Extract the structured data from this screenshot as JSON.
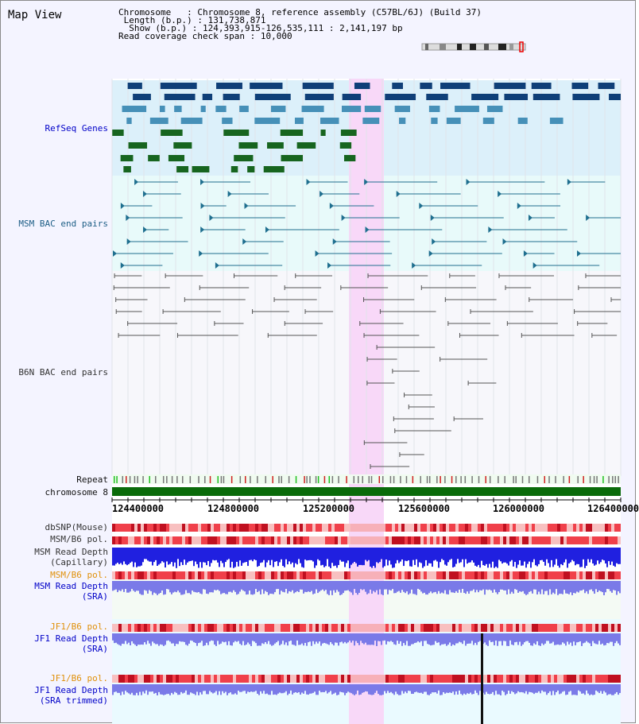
{
  "view": {
    "title": "Map View",
    "header": {
      "chromosome_key": "Chromosome",
      "chromosome_value": "Chromosome 8, reference assembly (C57BL/6J) (Build 37)",
      "length_key": "Length (b.p.)",
      "length_value": "131,738,871",
      "show_key": "Show (b.p.)",
      "show_value": "124,393,915-126,535,111 : 2,141,197 bp",
      "span_key": "Read coverage check span",
      "span_value": "10,000"
    }
  },
  "tracks": {
    "refseq": "RefSeq Genes",
    "msm_bac": "MSM BAC end pairs",
    "b6n_bac": "B6N BAC end pairs",
    "repeat": "Repeat",
    "chromosome": "chromosome 8",
    "dbsnp": "dbSNP(Mouse)",
    "msm_b6_pol_1": "MSM/B6 pol.",
    "msm_read_depth_cap_1": "MSM Read Depth",
    "msm_read_depth_cap_2": "(Capillary)",
    "msm_b6_pol_2": "MSM/B6 pol.",
    "msm_read_depth_sra_1": "MSM Read Depth",
    "msm_read_depth_sra_2": "(SRA)",
    "jf1_b6_pol_1": "JF1/B6 pol.",
    "jf1_read_depth_sra_1": "JF1 Read Depth",
    "jf1_read_depth_sra_2": "(SRA)",
    "jf1_b6_pol_2": "JF1/B6 pol.",
    "jf1_read_depth_trim_1": "JF1 Read Depth",
    "jf1_read_depth_trim_2": "(SRA trimmed)"
  },
  "axis": {
    "ticks": [
      "124400000",
      "124800000",
      "125200000",
      "125600000",
      "126000000",
      "126400000"
    ]
  },
  "colors": {
    "highlight": "#f8d8f8",
    "refseq_bg": "#dcf0fa",
    "msm_bg": "#e8fafa",
    "b6n_bg": "#f7f7fb",
    "gene_dark": "#0f3f78",
    "gene_mid": "#4690b8",
    "gene_green": "#17651f",
    "bac_teal": "#1f6f8f",
    "bac_gray": "#555555",
    "chromosome_green": "#0a6b0a",
    "snp_red": "#f0404a",
    "depth_blue": "#2020e0",
    "depth_light": "#7a7ae8"
  }
}
